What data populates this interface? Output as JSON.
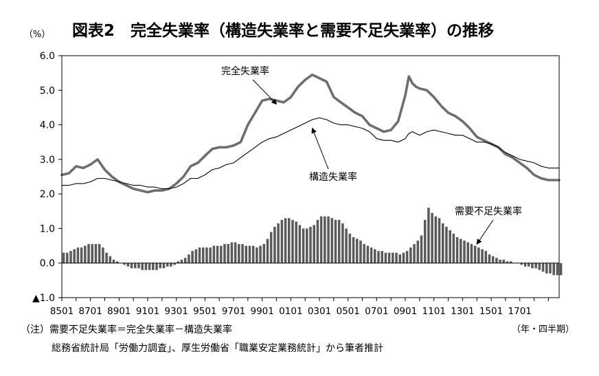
{
  "title": "図表2　完全失業率（構造失業率と需要不足失業率）の推移",
  "unit_label": "（%）",
  "x_unit_label": "（年・四半期）",
  "notes": [
    "（注）需要不足失業率＝完全失業率－構造失業率",
    "総務省統計局「労働力調査」、厚生労働省「職業安定業務統計」から筆者推計"
  ],
  "chart_data": {
    "type": "line",
    "x_range": [
      1985.0,
      2019.75
    ],
    "ylim": [
      -1.0,
      6.0
    ],
    "yticks": [
      6.0,
      5.0,
      4.0,
      3.0,
      2.0,
      1.0,
      0.0,
      -1.0
    ],
    "ytick_labels": [
      "6.0",
      "5.0",
      "4.0",
      "3.0",
      "2.0",
      "1.0",
      "0.0",
      "▲1.0"
    ],
    "xtick_labels": [
      "8501",
      "8701",
      "8901",
      "9101",
      "9301",
      "9501",
      "9701",
      "9901",
      "0101",
      "0301",
      "0501",
      "0701",
      "0901",
      "1101",
      "1301",
      "1501",
      "1701"
    ],
    "xtick_positions": [
      1985,
      1987,
      1989,
      1991,
      1993,
      1995,
      1997,
      1999,
      2001,
      2003,
      2005,
      2007,
      2009,
      2011,
      2013,
      2015,
      2017
    ],
    "grid": false,
    "annotations": [
      {
        "text": "完全失業率",
        "series": "total",
        "point": [
          2000.0,
          4.6
        ]
      },
      {
        "text": "構造失業率",
        "series": "structural",
        "point": [
          2002.5,
          3.9
        ]
      },
      {
        "text": "需要不足失業率",
        "series": "demand",
        "point": [
          2014.0,
          0.55
        ]
      }
    ],
    "series": [
      {
        "name": "完全失業率",
        "key": "total",
        "color": "#6e6e6e",
        "points": [
          [
            1985,
            2.55
          ],
          [
            1985.5,
            2.6
          ],
          [
            1986,
            2.8
          ],
          [
            1986.5,
            2.75
          ],
          [
            1987,
            2.85
          ],
          [
            1987.5,
            3.0
          ],
          [
            1988,
            2.7
          ],
          [
            1988.5,
            2.5
          ],
          [
            1989,
            2.35
          ],
          [
            1989.5,
            2.25
          ],
          [
            1990,
            2.15
          ],
          [
            1990.5,
            2.1
          ],
          [
            1991,
            2.05
          ],
          [
            1991.5,
            2.1
          ],
          [
            1992,
            2.1
          ],
          [
            1992.5,
            2.15
          ],
          [
            1993,
            2.3
          ],
          [
            1993.5,
            2.5
          ],
          [
            1994,
            2.8
          ],
          [
            1994.5,
            2.9
          ],
          [
            1995,
            3.1
          ],
          [
            1995.5,
            3.3
          ],
          [
            1996,
            3.35
          ],
          [
            1996.5,
            3.35
          ],
          [
            1997,
            3.4
          ],
          [
            1997.5,
            3.5
          ],
          [
            1998,
            4.0
          ],
          [
            1998.5,
            4.35
          ],
          [
            1999,
            4.7
          ],
          [
            1999.5,
            4.75
          ],
          [
            2000,
            4.7
          ],
          [
            2000.5,
            4.65
          ],
          [
            2001,
            4.8
          ],
          [
            2001.5,
            5.1
          ],
          [
            2002,
            5.3
          ],
          [
            2002.5,
            5.45
          ],
          [
            2003,
            5.35
          ],
          [
            2003.5,
            5.25
          ],
          [
            2004,
            4.8
          ],
          [
            2004.5,
            4.65
          ],
          [
            2005,
            4.5
          ],
          [
            2005.5,
            4.35
          ],
          [
            2006,
            4.25
          ],
          [
            2006.5,
            4.0
          ],
          [
            2007,
            3.9
          ],
          [
            2007.5,
            3.8
          ],
          [
            2008,
            3.85
          ],
          [
            2008.5,
            4.1
          ],
          [
            2009,
            4.85
          ],
          [
            2009.25,
            5.4
          ],
          [
            2009.5,
            5.2
          ],
          [
            2009.75,
            5.1
          ],
          [
            2010,
            5.05
          ],
          [
            2010.5,
            5.0
          ],
          [
            2011,
            4.8
          ],
          [
            2011.5,
            4.55
          ],
          [
            2012,
            4.35
          ],
          [
            2012.5,
            4.25
          ],
          [
            2013,
            4.1
          ],
          [
            2013.5,
            3.9
          ],
          [
            2014,
            3.65
          ],
          [
            2014.5,
            3.55
          ],
          [
            2015,
            3.45
          ],
          [
            2015.5,
            3.35
          ],
          [
            2016,
            3.15
          ],
          [
            2016.5,
            3.05
          ],
          [
            2017,
            2.9
          ],
          [
            2017.5,
            2.75
          ],
          [
            2018,
            2.55
          ],
          [
            2018.5,
            2.45
          ],
          [
            2019,
            2.4
          ],
          [
            2019.75,
            2.4
          ]
        ]
      },
      {
        "name": "構造失業率",
        "key": "structural",
        "color": "#000000",
        "points": [
          [
            1985,
            2.25
          ],
          [
            1985.5,
            2.25
          ],
          [
            1986,
            2.3
          ],
          [
            1986.5,
            2.3
          ],
          [
            1987,
            2.35
          ],
          [
            1987.5,
            2.45
          ],
          [
            1988,
            2.45
          ],
          [
            1988.5,
            2.4
          ],
          [
            1989,
            2.35
          ],
          [
            1989.5,
            2.3
          ],
          [
            1990,
            2.25
          ],
          [
            1990.5,
            2.25
          ],
          [
            1991,
            2.2
          ],
          [
            1991.5,
            2.2
          ],
          [
            1992,
            2.15
          ],
          [
            1992.5,
            2.15
          ],
          [
            1993,
            2.2
          ],
          [
            1993.5,
            2.3
          ],
          [
            1994,
            2.45
          ],
          [
            1994.5,
            2.45
          ],
          [
            1995,
            2.55
          ],
          [
            1995.5,
            2.7
          ],
          [
            1996,
            2.75
          ],
          [
            1996.5,
            2.85
          ],
          [
            1997,
            2.9
          ],
          [
            1997.5,
            3.05
          ],
          [
            1998,
            3.2
          ],
          [
            1998.5,
            3.35
          ],
          [
            1999,
            3.5
          ],
          [
            1999.5,
            3.6
          ],
          [
            2000,
            3.65
          ],
          [
            2000.5,
            3.75
          ],
          [
            2001,
            3.85
          ],
          [
            2001.5,
            3.95
          ],
          [
            2002,
            4.05
          ],
          [
            2002.5,
            4.15
          ],
          [
            2003,
            4.2
          ],
          [
            2003.5,
            4.15
          ],
          [
            2004,
            4.05
          ],
          [
            2004.5,
            4.0
          ],
          [
            2005,
            4.0
          ],
          [
            2005.5,
            3.95
          ],
          [
            2006,
            3.9
          ],
          [
            2006.5,
            3.8
          ],
          [
            2007,
            3.6
          ],
          [
            2007.5,
            3.55
          ],
          [
            2008,
            3.55
          ],
          [
            2008.5,
            3.5
          ],
          [
            2009,
            3.6
          ],
          [
            2009.25,
            3.75
          ],
          [
            2009.5,
            3.8
          ],
          [
            2010,
            3.7
          ],
          [
            2010.5,
            3.8
          ],
          [
            2011,
            3.85
          ],
          [
            2011.5,
            3.8
          ],
          [
            2012,
            3.75
          ],
          [
            2012.5,
            3.7
          ],
          [
            2013,
            3.7
          ],
          [
            2013.5,
            3.6
          ],
          [
            2014,
            3.5
          ],
          [
            2014.5,
            3.5
          ],
          [
            2015,
            3.45
          ],
          [
            2015.5,
            3.35
          ],
          [
            2016,
            3.2
          ],
          [
            2016.5,
            3.1
          ],
          [
            2017,
            3.0
          ],
          [
            2017.5,
            2.95
          ],
          [
            2018,
            2.9
          ],
          [
            2018.5,
            2.8
          ],
          [
            2019,
            2.75
          ],
          [
            2019.75,
            2.75
          ]
        ]
      },
      {
        "name": "需要不足失業率",
        "key": "demand",
        "color": "#5a5a5a",
        "start": 1985.0,
        "step": 0.25,
        "values": [
          0.3,
          0.3,
          0.35,
          0.4,
          0.45,
          0.45,
          0.5,
          0.55,
          0.55,
          0.55,
          0.55,
          0.45,
          0.3,
          0.2,
          0.1,
          0.05,
          0.0,
          -0.05,
          -0.1,
          -0.15,
          -0.15,
          -0.15,
          -0.2,
          -0.2,
          -0.2,
          -0.2,
          -0.2,
          -0.15,
          -0.15,
          -0.1,
          -0.1,
          -0.05,
          0.05,
          0.1,
          0.15,
          0.25,
          0.35,
          0.4,
          0.45,
          0.45,
          0.45,
          0.45,
          0.5,
          0.5,
          0.5,
          0.55,
          0.55,
          0.6,
          0.6,
          0.55,
          0.55,
          0.5,
          0.5,
          0.5,
          0.45,
          0.5,
          0.55,
          0.7,
          0.9,
          1.05,
          1.15,
          1.25,
          1.3,
          1.3,
          1.25,
          1.2,
          1.1,
          1.0,
          1.0,
          1.05,
          1.1,
          1.25,
          1.35,
          1.35,
          1.35,
          1.3,
          1.25,
          1.25,
          1.15,
          1.0,
          0.85,
          0.75,
          0.7,
          0.65,
          0.55,
          0.5,
          0.45,
          0.4,
          0.35,
          0.35,
          0.3,
          0.3,
          0.3,
          0.3,
          0.25,
          0.3,
          0.35,
          0.45,
          0.55,
          0.65,
          0.8,
          1.25,
          1.6,
          1.45,
          1.35,
          1.3,
          1.15,
          1.05,
          0.95,
          0.85,
          0.75,
          0.7,
          0.65,
          0.6,
          0.55,
          0.5,
          0.45,
          0.4,
          0.35,
          0.25,
          0.2,
          0.15,
          0.1,
          0.1,
          0.05,
          0.05,
          0.0,
          0.0,
          -0.05,
          -0.1,
          -0.1,
          -0.15,
          -0.15,
          -0.2,
          -0.25,
          -0.3,
          -0.3,
          -0.35,
          -0.35,
          -0.35
        ]
      }
    ]
  }
}
